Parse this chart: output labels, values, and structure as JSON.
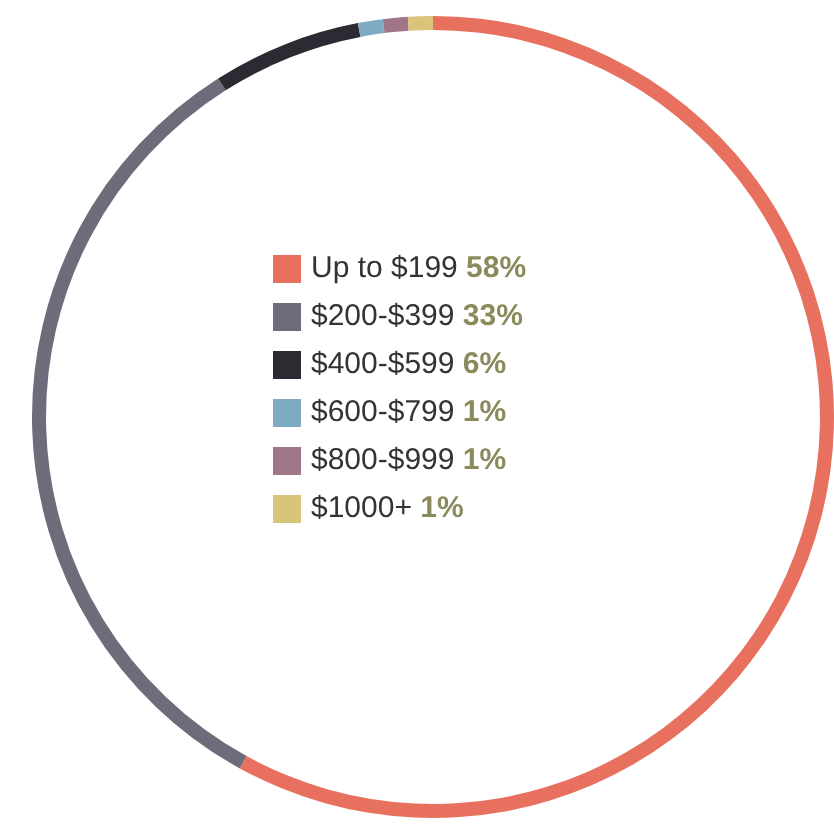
{
  "chart_data": {
    "type": "donut",
    "categories": [
      "Up to $199",
      "$200-$399",
      "$400-$599",
      "$600-$799",
      "$800-$999",
      "$1000+"
    ],
    "values": [
      58,
      33,
      6,
      1,
      1,
      1
    ],
    "colors": [
      "#e8705f",
      "#6e6b7a",
      "#2e2a33",
      "#7eaac4",
      "#a0758a",
      "#d9c47a"
    ],
    "value_labels": [
      "58%",
      "33%",
      "6%",
      "1%",
      "1%",
      "1%"
    ],
    "legend": "center"
  }
}
